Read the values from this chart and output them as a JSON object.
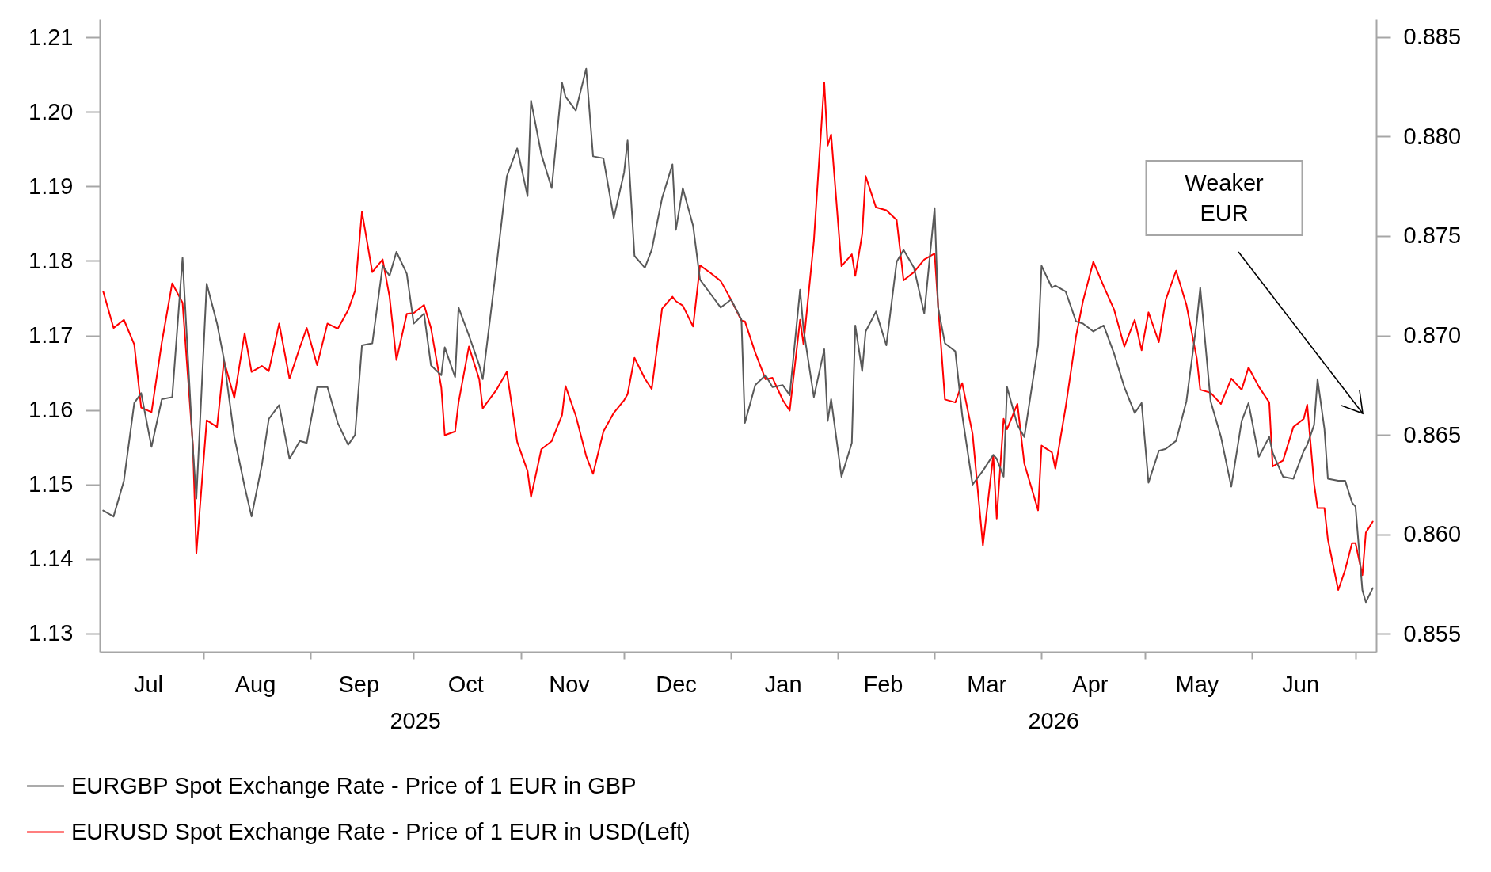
{
  "chart_data": {
    "type": "line",
    "x": [
      "2025-07-03",
      "2025-07-06",
      "2025-07-09",
      "2025-07-12",
      "2025-07-14",
      "2025-07-17",
      "2025-07-20",
      "2025-07-23",
      "2025-07-26",
      "2025-07-29",
      "2025-07-30",
      "2025-08-02",
      "2025-08-05",
      "2025-08-07",
      "2025-08-10",
      "2025-08-13",
      "2025-08-15",
      "2025-08-18",
      "2025-08-20",
      "2025-08-23",
      "2025-08-26",
      "2025-08-29",
      "2025-08-31",
      "2025-09-03",
      "2025-09-06",
      "2025-09-09",
      "2025-09-12",
      "2025-09-14",
      "2025-09-16",
      "2025-09-19",
      "2025-09-22",
      "2025-09-24",
      "2025-09-26",
      "2025-09-29",
      "2025-10-01",
      "2025-10-04",
      "2025-10-06",
      "2025-10-09",
      "2025-10-10",
      "2025-10-13",
      "2025-10-14",
      "2025-10-17",
      "2025-10-20",
      "2025-10-21",
      "2025-10-25",
      "2025-10-28",
      "2025-10-31",
      "2025-11-03",
      "2025-11-04",
      "2025-11-07",
      "2025-11-10",
      "2025-11-13",
      "2025-11-14",
      "2025-11-17",
      "2025-11-20",
      "2025-11-22",
      "2025-11-25",
      "2025-11-28",
      "2025-12-01",
      "2025-12-02",
      "2025-12-04",
      "2025-12-07",
      "2025-12-09",
      "2025-12-12",
      "2025-12-15",
      "2025-12-16",
      "2025-12-18",
      "2025-12-21",
      "2025-12-23",
      "2025-12-26",
      "2025-12-29",
      "2026-01-01",
      "2026-01-04",
      "2026-01-05",
      "2026-01-08",
      "2026-01-11",
      "2026-01-13",
      "2026-01-16",
      "2026-01-18",
      "2026-01-21",
      "2026-01-22",
      "2026-01-25",
      "2026-01-28",
      "2026-01-29",
      "2026-01-30",
      "2026-02-02",
      "2026-02-05",
      "2026-02-06",
      "2026-02-08",
      "2026-02-09",
      "2026-02-12",
      "2026-02-15",
      "2026-02-18",
      "2026-02-20",
      "2026-02-23",
      "2026-02-26",
      "2026-03-01",
      "2026-03-02",
      "2026-03-04",
      "2026-03-07",
      "2026-03-09",
      "2026-03-12",
      "2026-03-15",
      "2026-03-18",
      "2026-03-19",
      "2026-03-21",
      "2026-03-22",
      "2026-03-25",
      "2026-03-27",
      "2026-03-31",
      "2026-04-01",
      "2026-04-04",
      "2026-04-05",
      "2026-04-08",
      "2026-04-11",
      "2026-04-13",
      "2026-04-16",
      "2026-04-19",
      "2026-04-22",
      "2026-04-25",
      "2026-04-28",
      "2026-04-30",
      "2026-05-02",
      "2026-05-05",
      "2026-05-07",
      "2026-05-10",
      "2026-05-13",
      "2026-05-16",
      "2026-05-17",
      "2026-05-20",
      "2026-05-23",
      "2026-05-26",
      "2026-05-29",
      "2026-05-31",
      "2026-06-03",
      "2026-06-06",
      "2026-06-07",
      "2026-06-10",
      "2026-06-13",
      "2026-06-16",
      "2026-06-17",
      "2026-06-19",
      "2026-06-20",
      "2026-06-22",
      "2026-06-23",
      "2026-06-26",
      "2026-06-28",
      "2026-06-30",
      "2026-07-01",
      "2026-07-03",
      "2026-07-04",
      "2026-07-06"
    ],
    "series": [
      {
        "name": "EURGBP Spot Exchange Rate - Price of 1 EUR in GBP",
        "color": "#595959",
        "axis": "y2",
        "values": [
          0.8612,
          0.8609,
          0.8627,
          0.8666,
          0.8671,
          0.8644,
          0.8668,
          0.8669,
          0.8739,
          0.8643,
          0.8618,
          0.8726,
          0.8706,
          0.8688,
          0.8649,
          0.8624,
          0.8609,
          0.8635,
          0.8658,
          0.8665,
          0.8638,
          0.8647,
          0.8646,
          0.8674,
          0.8674,
          0.8656,
          0.8645,
          0.865,
          0.8695,
          0.8696,
          0.8735,
          0.873,
          0.8742,
          0.8731,
          0.8706,
          0.8711,
          0.8685,
          0.868,
          0.8694,
          0.8679,
          0.8714,
          0.87,
          0.8685,
          0.8678,
          0.8735,
          0.878,
          0.8794,
          0.877,
          0.8818,
          0.8791,
          0.8774,
          0.8827,
          0.882,
          0.8813,
          0.8834,
          0.879,
          0.8789,
          0.8759,
          0.8782,
          0.8798,
          0.874,
          0.8734,
          0.8743,
          0.8769,
          0.8786,
          0.8753,
          0.8774,
          0.8755,
          0.8728,
          0.8721,
          0.8714,
          0.8718,
          0.8708,
          0.8656,
          0.8675,
          0.868,
          0.8674,
          0.8675,
          0.867,
          0.8723,
          0.8703,
          0.8669,
          0.8693,
          0.8657,
          0.8668,
          0.8629,
          0.8646,
          0.8705,
          0.8682,
          0.8702,
          0.8712,
          0.8695,
          0.8737,
          0.8743,
          0.8734,
          0.8711,
          0.8764,
          0.8714,
          0.8696,
          0.8692,
          0.866,
          0.8625,
          0.8632,
          0.864,
          0.8638,
          0.8629,
          0.8674,
          0.8655,
          0.8649,
          0.8695,
          0.8735,
          0.8724,
          0.8725,
          0.8722,
          0.8707,
          0.8706,
          0.8702,
          0.8705,
          0.8691,
          0.8674,
          0.8661,
          0.8666,
          0.8626,
          0.8642,
          0.8643,
          0.8647,
          0.8667,
          0.8707,
          0.8724,
          0.8667,
          0.8649,
          0.8624,
          0.8657,
          0.8666,
          0.8639,
          0.8649,
          0.8641,
          0.8629,
          0.8628,
          0.8642,
          0.8645,
          0.8655,
          0.8678,
          0.8653,
          0.8628,
          0.8627,
          0.8627,
          0.8616,
          0.8614,
          0.8572,
          0.8566,
          0.8573
        ]
      },
      {
        "name": "EURUSD Spot Exchange Rate - Price of 1 EUR in USD(Left)",
        "color": "#ff0000",
        "values": [
          1.1759,
          1.171,
          1.1721,
          1.1688,
          1.1603,
          1.1597,
          1.1691,
          1.177,
          1.1744,
          1.1552,
          1.1407,
          1.1586,
          1.1577,
          1.1666,
          1.1616,
          1.1703,
          1.1651,
          1.1659,
          1.1652,
          1.1716,
          1.1642,
          1.1684,
          1.171,
          1.166,
          1.1716,
          1.1709,
          1.1734,
          1.176,
          1.1866,
          1.1785,
          1.1802,
          1.1752,
          1.1667,
          1.1729,
          1.173,
          1.1741,
          1.171,
          1.163,
          1.1566,
          1.1571,
          1.161,
          1.1685,
          1.1641,
          1.1602,
          1.1627,
          1.1651,
          1.1557,
          1.1518,
          1.1483,
          1.1547,
          1.1558,
          1.1593,
          1.1632,
          1.1592,
          1.1538,
          1.1514,
          1.1571,
          1.1596,
          1.1613,
          1.1621,
          1.167,
          1.1642,
          1.1628,
          1.1736,
          1.1752,
          1.1746,
          1.174,
          1.1712,
          1.1794,
          1.1784,
          1.1773,
          1.1748,
          1.172,
          1.1719,
          1.1677,
          1.1641,
          1.1643,
          1.1613,
          1.1599,
          1.1721,
          1.1688,
          1.1827,
          1.204,
          1.1955,
          1.197,
          1.1793,
          1.1809,
          1.178,
          1.1836,
          1.1914,
          1.1872,
          1.1868,
          1.1855,
          1.1774,
          1.1785,
          1.1802,
          1.181,
          1.1741,
          1.1614,
          1.161,
          1.1636,
          1.1568,
          1.1418,
          1.1539,
          1.1454,
          1.1588,
          1.1574,
          1.1608,
          1.1528,
          1.1465,
          1.1552,
          1.1543,
          1.1521,
          1.1604,
          1.1699,
          1.1746,
          1.1799,
          1.1766,
          1.1735,
          1.1685,
          1.1721,
          1.168,
          1.1731,
          1.1691,
          1.1748,
          1.1787,
          1.1741,
          1.1669,
          1.1627,
          1.1623,
          1.1608,
          1.1642,
          1.1627,
          1.1657,
          1.1631,
          1.161,
          1.1524,
          1.1532,
          1.1577,
          1.1588,
          1.1607,
          1.1501,
          1.1468,
          1.1468,
          1.1426,
          1.1358,
          1.1385,
          1.1421,
          1.1421,
          1.1378,
          1.1435,
          1.145
        ]
      }
    ],
    "xlim": [
      "2025-07-02",
      "2026-07-07"
    ],
    "xticks": [
      {
        "value": "2025-07-16",
        "label": "Jul"
      },
      {
        "value": "2025-08-01",
        "label": null
      },
      {
        "value": "2025-08-16",
        "label": "Aug"
      },
      {
        "value": "2025-09-01",
        "label": null
      },
      {
        "value": "2025-09-15",
        "label": "Sep"
      },
      {
        "value": "2025-10-01",
        "label": null
      },
      {
        "value": "2025-10-16",
        "label": "Oct"
      },
      {
        "value": "2025-11-01",
        "label": null
      },
      {
        "value": "2025-11-15",
        "label": "Nov"
      },
      {
        "value": "2025-12-01",
        "label": null
      },
      {
        "value": "2025-12-16",
        "label": "Dec"
      },
      {
        "value": "2026-01-01",
        "label": null
      },
      {
        "value": "2026-01-16",
        "label": "Jan"
      },
      {
        "value": "2026-02-01",
        "label": null
      },
      {
        "value": "2026-02-14",
        "label": "Feb"
      },
      {
        "value": "2026-03-01",
        "label": null
      },
      {
        "value": "2026-03-16",
        "label": "Mar"
      },
      {
        "value": "2026-04-01",
        "label": null
      },
      {
        "value": "2026-04-15",
        "label": "Apr"
      },
      {
        "value": "2026-05-01",
        "label": null
      },
      {
        "value": "2026-05-16",
        "label": "May"
      },
      {
        "value": "2026-06-01",
        "label": null
      },
      {
        "value": "2026-06-15",
        "label": "Jun"
      },
      {
        "value": "2026-07-01",
        "label": null
      }
    ],
    "ylim": [
      1.1275,
      1.2125
    ],
    "yticks": [
      1.13,
      1.14,
      1.15,
      1.16,
      1.17,
      1.18,
      1.19,
      {
        "value": 1.2,
        "label": "1.20"
      },
      1.21
    ],
    "y2lim": [
      0.8541,
      0.8859
    ],
    "y2ticks": [
      0.855,
      {
        "value": 0.86,
        "label": "0.860"
      },
      0.865,
      {
        "value": 0.87,
        "label": "0.870"
      },
      0.875,
      {
        "value": 0.88,
        "label": "0.880"
      },
      0.885
    ],
    "legend": "bottom",
    "annotations": [
      "2025",
      "2026",
      "Weaker EUR"
    ]
  }
}
